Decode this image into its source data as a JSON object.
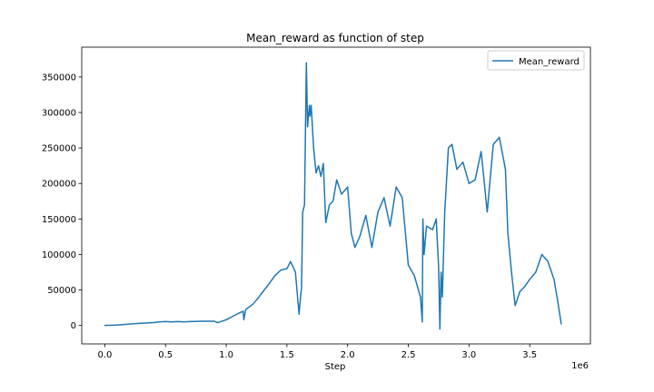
{
  "chart_data": {
    "type": "line",
    "title": "Mean_reward as function of step",
    "xlabel": "Step",
    "ylabel": "",
    "x_scale_label": "1e6",
    "xlim": [
      -0.19,
      4.0
    ],
    "ylim": [
      -26000,
      392000
    ],
    "xticks": [
      0.0,
      0.5,
      1.0,
      1.5,
      2.0,
      2.5,
      3.0,
      3.5
    ],
    "xtick_labels": [
      "0.0",
      "0.5",
      "1.0",
      "1.5",
      "2.0",
      "2.5",
      "3.0",
      "3.5"
    ],
    "yticks": [
      0,
      50000,
      100000,
      150000,
      200000,
      250000,
      300000,
      350000
    ],
    "ytick_labels": [
      "0",
      "50000",
      "100000",
      "150000",
      "200000",
      "250000",
      "300000",
      "350000"
    ],
    "grid": false,
    "legend_position": "top-right",
    "color": "#1f77b4",
    "series": [
      {
        "name": "Mean_reward",
        "x": [
          0.0,
          0.1,
          0.2,
          0.3,
          0.4,
          0.45,
          0.5,
          0.55,
          0.6,
          0.65,
          0.7,
          0.8,
          0.9,
          0.93,
          1.0,
          1.1,
          1.14,
          1.145,
          1.16,
          1.18,
          1.22,
          1.26,
          1.3,
          1.35,
          1.4,
          1.45,
          1.5,
          1.53,
          1.57,
          1.6,
          1.615,
          1.62,
          1.63,
          1.645,
          1.66,
          1.67,
          1.68,
          1.685,
          1.69,
          1.7,
          1.72,
          1.74,
          1.76,
          1.78,
          1.8,
          1.82,
          1.85,
          1.88,
          1.91,
          1.95,
          2.0,
          2.03,
          2.06,
          2.1,
          2.15,
          2.2,
          2.25,
          2.3,
          2.35,
          2.4,
          2.45,
          2.5,
          2.55,
          2.6,
          2.615,
          2.62,
          2.63,
          2.65,
          2.7,
          2.73,
          2.75,
          2.76,
          2.77,
          2.78,
          2.8,
          2.83,
          2.86,
          2.9,
          2.95,
          3.0,
          3.05,
          3.1,
          3.15,
          3.2,
          3.25,
          3.3,
          3.32,
          3.35,
          3.38,
          3.42,
          3.46,
          3.5,
          3.55,
          3.6,
          3.65,
          3.7,
          3.73,
          3.76
        ],
        "values": [
          0,
          500,
          2000,
          3000,
          4000,
          5000,
          5500,
          5000,
          5500,
          5000,
          5500,
          6000,
          6000,
          4000,
          8000,
          17000,
          20000,
          8000,
          22000,
          25000,
          30000,
          38000,
          47000,
          58000,
          70000,
          78000,
          80000,
          90000,
          75000,
          16000,
          45000,
          52000,
          160000,
          170000,
          370000,
          280000,
          300000,
          310000,
          295000,
          310000,
          250000,
          215000,
          225000,
          210000,
          228000,
          145000,
          170000,
          175000,
          205000,
          185000,
          195000,
          130000,
          110000,
          125000,
          155000,
          110000,
          160000,
          180000,
          140000,
          195000,
          180000,
          85000,
          70000,
          40000,
          5000,
          150000,
          100000,
          140000,
          135000,
          150000,
          80000,
          -5000,
          75000,
          40000,
          160000,
          250000,
          255000,
          220000,
          230000,
          200000,
          205000,
          245000,
          160000,
          255000,
          265000,
          220000,
          130000,
          75000,
          28000,
          48000,
          55000,
          65000,
          75000,
          100000,
          90000,
          65000,
          35000,
          2000
        ]
      }
    ]
  }
}
